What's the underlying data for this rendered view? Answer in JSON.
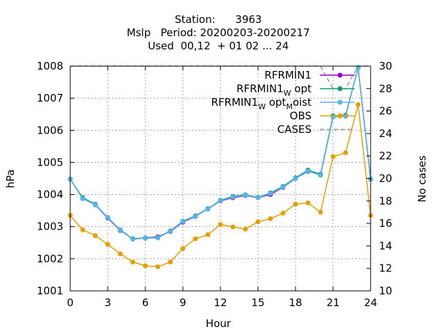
{
  "chart_data": {
    "type": "line",
    "title_lines": [
      "Station:      3963",
      "Mslp   Period: 20200203-20200217",
      "Used  00,12  + 01 02 ... 24"
    ],
    "xlabel": "Hour",
    "ylabel": "hPa",
    "y2label": "No cases",
    "xlim": [
      0,
      24
    ],
    "ylim": [
      1001,
      1008
    ],
    "y2lim": [
      10,
      30
    ],
    "xticks": [
      0,
      3,
      6,
      9,
      12,
      15,
      18,
      21,
      24
    ],
    "yticks": [
      1001,
      1002,
      1003,
      1004,
      1005,
      1006,
      1007,
      1008
    ],
    "y2ticks": [
      10,
      12,
      14,
      16,
      18,
      20,
      22,
      24,
      26,
      28,
      30
    ],
    "grid": true,
    "legend_position": "top-right",
    "x": [
      0,
      1,
      2,
      3,
      4,
      5,
      6,
      7,
      8,
      9,
      10,
      11,
      12,
      13,
      14,
      15,
      16,
      17,
      18,
      19,
      20,
      21,
      22,
      23,
      24
    ],
    "series": [
      {
        "name": "RFRMIN1",
        "color": "#9400d3",
        "marker": "circle",
        "values": [
          1004.48,
          1003.88,
          1003.68,
          1003.27,
          1002.88,
          1002.62,
          1002.65,
          1002.68,
          1002.85,
          1003.14,
          1003.32,
          1003.55,
          1003.8,
          1003.9,
          1003.97,
          1003.9,
          1004.0,
          1004.22,
          1004.5,
          1004.72,
          1004.62,
          1006.42,
          1006.45,
          1007.95,
          1004.48
        ]
      },
      {
        "name": "RFRMIN1_W opt",
        "color": "#009e73",
        "marker": "circle",
        "values": [
          1004.48,
          1003.9,
          1003.7,
          1003.28,
          1002.9,
          1002.62,
          1002.65,
          1002.66,
          1002.87,
          1003.17,
          1003.34,
          1003.56,
          1003.82,
          1003.94,
          1003.99,
          1003.91,
          1004.05,
          1004.25,
          1004.52,
          1004.76,
          1004.63,
          1006.45,
          1006.47,
          1007.95,
          1004.48
        ]
      },
      {
        "name": "RFRMIN1_W opt_M oist",
        "color": "#56b4e9",
        "marker": "circle",
        "values": [
          1004.48,
          1003.87,
          1003.68,
          1003.29,
          1002.89,
          1002.61,
          1002.64,
          1002.65,
          1002.86,
          1003.16,
          1003.33,
          1003.55,
          1003.81,
          1003.92,
          1003.98,
          1003.9,
          1004.03,
          1004.23,
          1004.5,
          1004.73,
          1004.6,
          1006.42,
          1006.44,
          1007.95,
          1004.48
        ]
      },
      {
        "name": "OBS",
        "color": "#e69f00",
        "marker": "circle",
        "values": [
          1003.35,
          1002.9,
          1002.72,
          1002.45,
          1002.15,
          1001.9,
          1001.78,
          1001.75,
          1001.9,
          1002.32,
          1002.62,
          1002.75,
          1003.07,
          1002.99,
          1002.92,
          1003.15,
          1003.25,
          1003.42,
          1003.7,
          1003.74,
          1003.45,
          1005.18,
          1005.3,
          1006.8,
          1003.35
        ]
      },
      {
        "name": "CASES",
        "color": "#999999",
        "axis": "y2",
        "dashed": true,
        "values": [
          30,
          30,
          30,
          30,
          30,
          30,
          30,
          30,
          30,
          30,
          30,
          30,
          30,
          30,
          30,
          30,
          30,
          30,
          30,
          30,
          30,
          28,
          28,
          30,
          30
        ]
      }
    ],
    "legend": {
      "entries": [
        {
          "series": 0,
          "parts": [
            {
              "text": "RFRMIN1"
            }
          ]
        },
        {
          "series": 1,
          "parts": [
            {
              "text": "RFRMIN1"
            },
            {
              "text": "W",
              "sub": true
            },
            {
              "text": " opt"
            }
          ]
        },
        {
          "series": 2,
          "parts": [
            {
              "text": "RFRMIN1"
            },
            {
              "text": "W",
              "sub": true
            },
            {
              "text": " opt"
            },
            {
              "text": "M",
              "sub": true
            },
            {
              "text": "oist"
            }
          ]
        },
        {
          "series": 3,
          "parts": [
            {
              "text": "OBS"
            }
          ]
        },
        {
          "series": 4,
          "parts": [
            {
              "text": "CASES"
            }
          ]
        }
      ]
    }
  }
}
